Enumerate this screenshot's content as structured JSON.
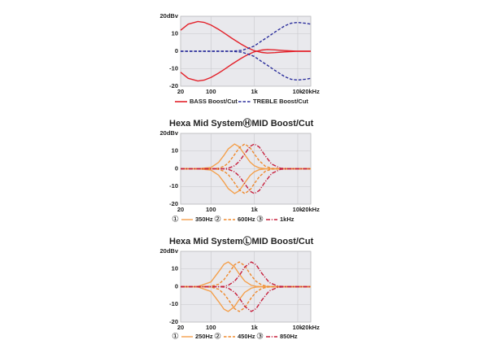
{
  "chart_data": [
    {
      "type": "line",
      "xscale": "log",
      "grid": true,
      "x": [
        20,
        30,
        50,
        70,
        100,
        150,
        200,
        300,
        500,
        700,
        1000,
        1500,
        2000,
        3000,
        5000,
        7000,
        10000,
        15000,
        20000
      ],
      "xlim": [
        20,
        20000
      ],
      "xticks": [
        20,
        100,
        {
          "value": 1000,
          "label": "1k"
        },
        {
          "value": 10000,
          "label": "10k"
        },
        {
          "value": 20000,
          "label": "20kHz"
        }
      ],
      "ylim": [
        -20,
        20
      ],
      "yticks": [
        -20,
        -10,
        0,
        10,
        {
          "value": 20,
          "label": "20dBv"
        }
      ],
      "series": [
        {
          "name": "BASS Boost/Cut",
          "color": "#e3222b",
          "dash": "solid",
          "values": [
            12,
            15.5,
            17,
            16.5,
            15,
            12.5,
            10.5,
            7.5,
            4,
            2,
            0.3,
            -0.7,
            -1,
            -0.8,
            -0.4,
            -0.2,
            0,
            0,
            0
          ],
          "cut_values": [
            -12,
            -15.5,
            -17,
            -16.5,
            -15,
            -12.5,
            -10.5,
            -7.5,
            -4,
            -2,
            -0.3,
            0.7,
            1,
            0.8,
            0.4,
            0.2,
            0,
            0,
            0
          ]
        },
        {
          "name": "TREBLE Boost/Cut",
          "color": "#2b2e9c",
          "dash": "dashed",
          "values": [
            0,
            0,
            0,
            0,
            0,
            0,
            0,
            0,
            0.5,
            1.5,
            3,
            6,
            8,
            11,
            14.5,
            16,
            16.5,
            16,
            15.5
          ],
          "cut_values": [
            0,
            0,
            0,
            0,
            0,
            0,
            0,
            0,
            -0.5,
            -1.5,
            -3,
            -6,
            -8,
            -11,
            -14.5,
            -16,
            -16.5,
            -16,
            -15.5
          ]
        }
      ]
    },
    {
      "type": "line",
      "title": "Hexa Mid SystemⒽMID Boost/Cut",
      "xscale": "log",
      "grid": true,
      "x": [
        20,
        50,
        100,
        150,
        200,
        250,
        350,
        450,
        600,
        800,
        1000,
        1300,
        1800,
        2500,
        4000,
        7000,
        20000
      ],
      "xlim": [
        20,
        20000
      ],
      "xticks": [
        20,
        100,
        {
          "value": 1000,
          "label": "1k"
        },
        {
          "value": 10000,
          "label": "10k"
        },
        {
          "value": 20000,
          "label": "20kHz"
        }
      ],
      "ylim": [
        -20,
        20
      ],
      "yticks": [
        -20,
        -10,
        0,
        10,
        {
          "value": 20,
          "label": "20dBv"
        }
      ],
      "series": [
        {
          "name": "350Hz",
          "number": "①",
          "color": "#f4a04c",
          "dash": "solid",
          "values": [
            0,
            0,
            0.7,
            3.6,
            7.6,
            11.2,
            14,
            12.4,
            8,
            3.8,
            1.7,
            0.5,
            0.1,
            0,
            0,
            0,
            0
          ],
          "cut_values": [
            0,
            0,
            -0.7,
            -3.6,
            -7.6,
            -11.2,
            -14,
            -12.4,
            -8,
            -3.8,
            -1.7,
            -0.5,
            -0.1,
            0,
            0,
            0,
            0
          ]
        },
        {
          "name": "600Hz",
          "number": "②",
          "color": "#ef8a2e",
          "dash": "dashed",
          "values": [
            0,
            0,
            0,
            0.3,
            1.4,
            3.2,
            8,
            11.9,
            14,
            11.9,
            8.4,
            4.5,
            1.4,
            0.2,
            0,
            0,
            0
          ],
          "cut_values": [
            0,
            0,
            0,
            -0.3,
            -1.4,
            -3.2,
            -8,
            -11.9,
            -14,
            -11.9,
            -8.4,
            -4.5,
            -1.4,
            -0.2,
            0,
            0,
            0
          ]
        },
        {
          "name": "1kHz",
          "number": "③",
          "color": "#c7203d",
          "dash": "dashdot",
          "values": [
            0,
            0,
            0,
            0,
            0.1,
            0.3,
            1.7,
            4.2,
            8.4,
            12.7,
            14,
            12.3,
            7.2,
            2.7,
            0.3,
            0,
            0
          ],
          "cut_values": [
            0,
            0,
            0,
            0,
            -0.1,
            -0.3,
            -1.7,
            -4.2,
            -8.4,
            -12.7,
            -14,
            -12.3,
            -7.2,
            -2.7,
            -0.3,
            0,
            0
          ]
        }
      ]
    },
    {
      "type": "line",
      "title": "Hexa Mid SystemⓁMID Boost/Cut",
      "xscale": "log",
      "grid": true,
      "x": [
        20,
        50,
        100,
        150,
        200,
        250,
        350,
        450,
        600,
        850,
        1100,
        1500,
        2200,
        3500,
        6000,
        20000
      ],
      "xlim": [
        20,
        20000
      ],
      "xticks": [
        20,
        100,
        {
          "value": 1000,
          "label": "1k"
        },
        {
          "value": 10000,
          "label": "10k"
        },
        {
          "value": 20000,
          "label": "20kHz"
        }
      ],
      "ylim": [
        -20,
        20
      ],
      "yticks": [
        -20,
        -10,
        0,
        10,
        {
          "value": 20,
          "label": "20dBv"
        }
      ],
      "series": [
        {
          "name": "250Hz",
          "number": "①",
          "color": "#f4a04c",
          "dash": "solid",
          "values": [
            0,
            0.1,
            2.7,
            8.4,
            12.7,
            14,
            11.2,
            7.2,
            3.2,
            0.8,
            0.2,
            0,
            0,
            0,
            0,
            0
          ],
          "cut_values": [
            0,
            -0.1,
            -2.7,
            -8.4,
            -12.7,
            -14,
            -11.2,
            -7.2,
            -3.2,
            -0.8,
            -0.2,
            0,
            0,
            0,
            0,
            0
          ]
        },
        {
          "name": "450Hz",
          "number": "②",
          "color": "#ef8a2e",
          "dash": "dashed",
          "values": [
            0,
            0,
            0.2,
            1.4,
            4,
            7.2,
            12.4,
            14,
            11.9,
            6.3,
            3,
            0.9,
            0.1,
            0,
            0,
            0
          ],
          "cut_values": [
            0,
            0,
            -0.2,
            -1.4,
            -4,
            -7.2,
            -12.4,
            -14,
            -11.9,
            -6.3,
            -3,
            -0.9,
            -0.1,
            0,
            0,
            0
          ]
        },
        {
          "name": "850Hz",
          "number": "③",
          "color": "#c7203d",
          "dash": "dashdot",
          "values": [
            0,
            0,
            0,
            0,
            0.2,
            0.8,
            3.1,
            6.3,
            11.1,
            14,
            12.4,
            7.5,
            2.4,
            0.3,
            0,
            0
          ],
          "cut_values": [
            0,
            0,
            0,
            0,
            -0.2,
            -0.8,
            -3.1,
            -6.3,
            -11.1,
            -14,
            -12.4,
            -7.5,
            -2.4,
            -0.3,
            0,
            0
          ]
        }
      ]
    }
  ]
}
